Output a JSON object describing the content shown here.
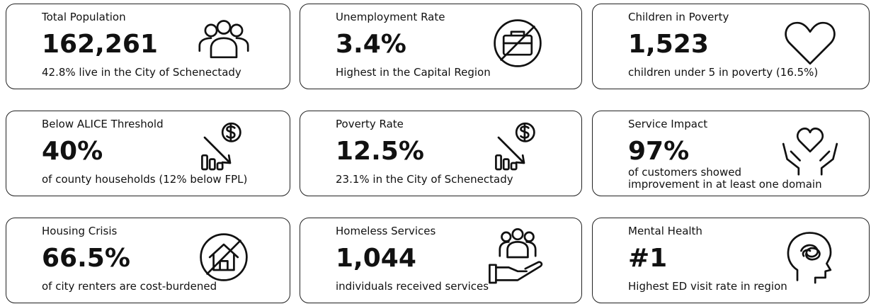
{
  "cards": [
    {
      "label": "Total Population",
      "value": "162,261",
      "description": [
        "42.8% live in the City of Schenectady"
      ]
    },
    {
      "label": "Unemployment Rate",
      "value": "3.4%",
      "description": [
        "Highest in the Capital Region"
      ]
    },
    {
      "label": "Children in Poverty",
      "value": "1,523",
      "description": [
        "children under 5 in poverty (16.5%)"
      ]
    },
    {
      "label": "Below ALICE Threshold",
      "value": "40%",
      "description": [
        "of county households (12% below FPL)"
      ]
    },
    {
      "label": "Poverty Rate",
      "value": "12.5%",
      "description": [
        "23.1% in the City of Schenectady"
      ]
    },
    {
      "label": "Service Impact",
      "value": "97%",
      "description": [
        "of customers showed",
        "improvement in at least one domain"
      ]
    },
    {
      "label": "Housing Crisis",
      "value": "66.5%",
      "description": [
        "of city renters are cost-burdened"
      ]
    },
    {
      "label": "Homeless Services",
      "value": "1,044",
      "description": [
        "individuals received services"
      ]
    },
    {
      "label": "Mental Health",
      "value": "#1",
      "description": [
        "Highest ED visit rate in region"
      ]
    }
  ]
}
